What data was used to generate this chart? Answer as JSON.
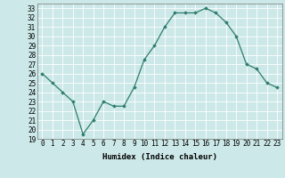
{
  "x": [
    0,
    1,
    2,
    3,
    4,
    5,
    6,
    7,
    8,
    9,
    10,
    11,
    12,
    13,
    14,
    15,
    16,
    17,
    18,
    19,
    20,
    21,
    22,
    23
  ],
  "y": [
    26,
    25,
    24,
    23,
    19.5,
    21,
    23,
    22.5,
    22.5,
    24.5,
    27.5,
    29,
    31,
    32.5,
    32.5,
    32.5,
    33,
    32.5,
    31.5,
    30,
    27,
    26.5,
    25,
    24.5
  ],
  "xlabel": "Humidex (Indice chaleur)",
  "ylim": [
    19,
    33.5
  ],
  "xlim": [
    -0.5,
    23.5
  ],
  "yticks": [
    19,
    20,
    21,
    22,
    23,
    24,
    25,
    26,
    27,
    28,
    29,
    30,
    31,
    32,
    33
  ],
  "xticks": [
    0,
    1,
    2,
    3,
    4,
    5,
    6,
    7,
    8,
    9,
    10,
    11,
    12,
    13,
    14,
    15,
    16,
    17,
    18,
    19,
    20,
    21,
    22,
    23
  ],
  "line_color": "#2e7d6e",
  "marker": "D",
  "marker_size": 1.8,
  "bg_color": "#cce8e8",
  "grid_color": "#ffffff",
  "label_fontsize": 6.5,
  "tick_fontsize": 5.5
}
